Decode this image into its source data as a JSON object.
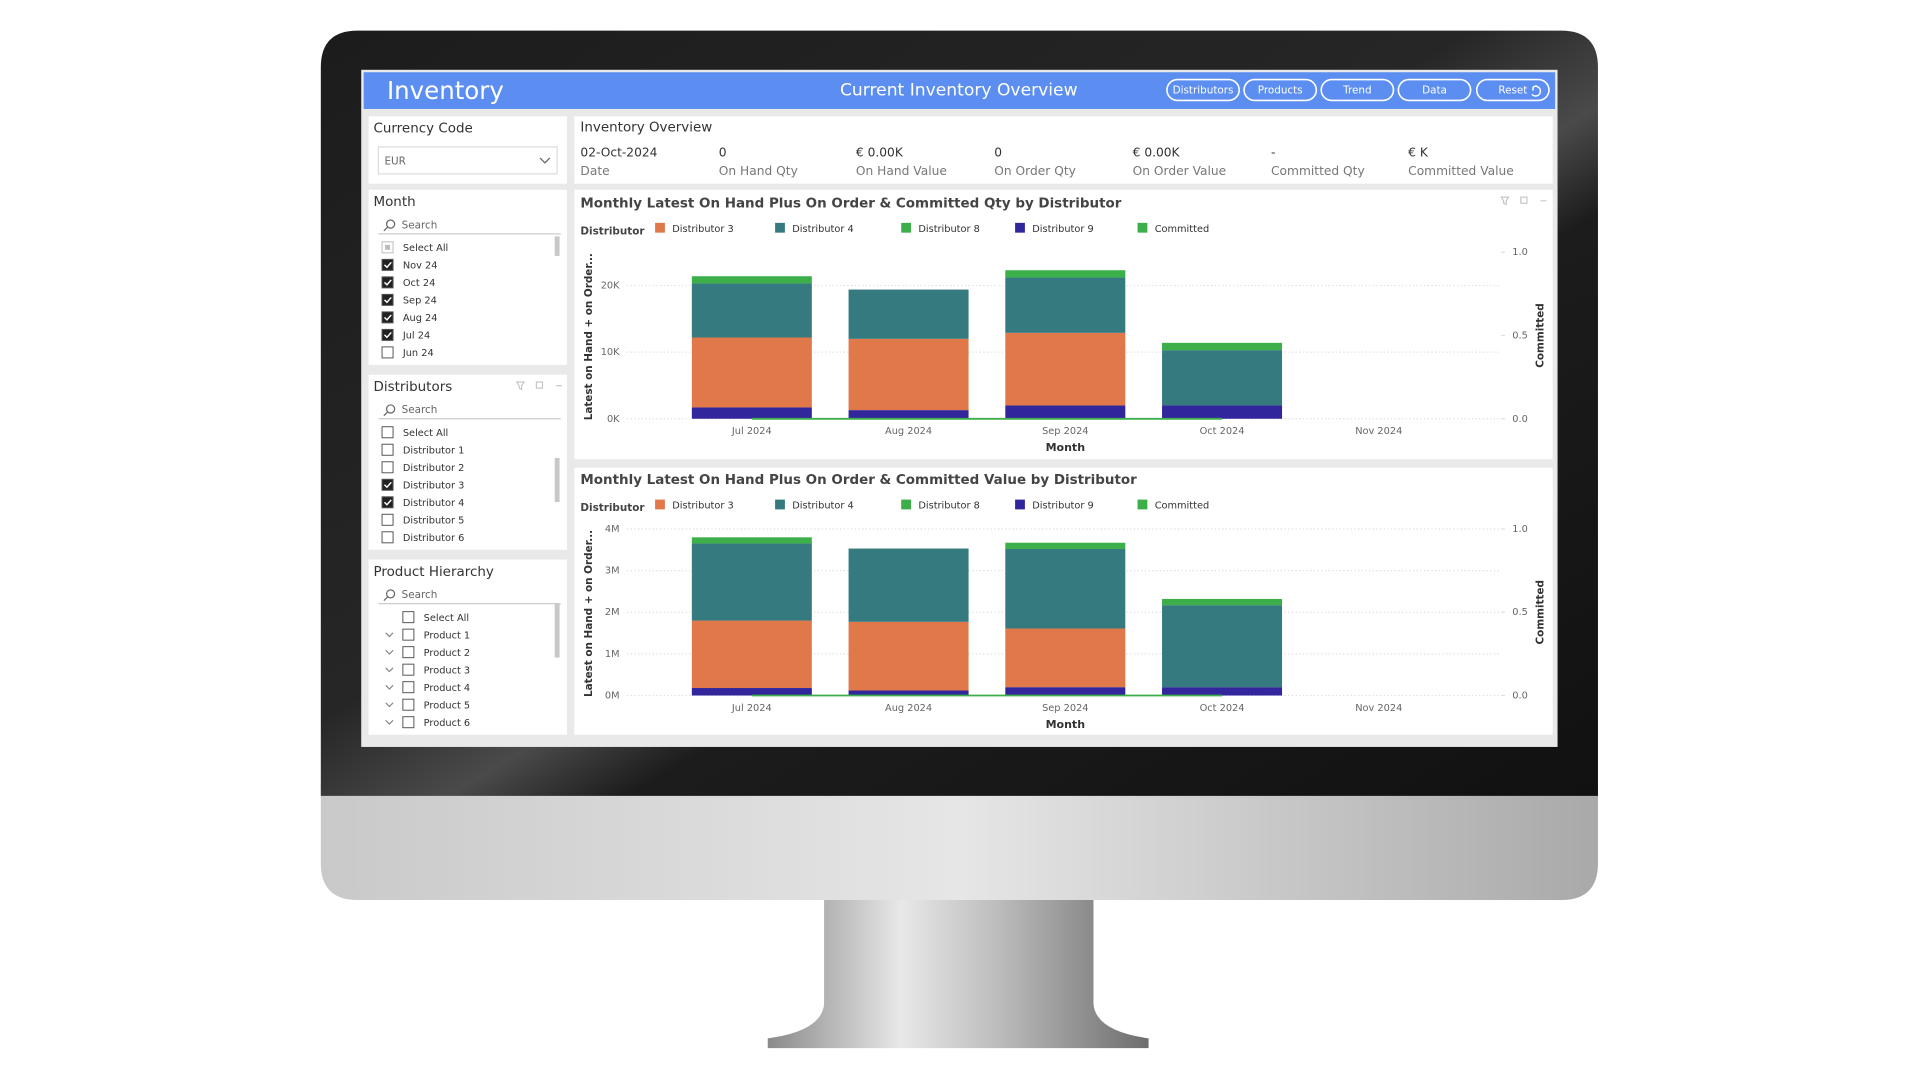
{
  "header": {
    "title": "Inventory",
    "subtitle": "Current Inventory Overview",
    "buttons": [
      "Distributors",
      "Products",
      "Trend",
      "Data",
      "Reset"
    ]
  },
  "overview": {
    "title": "Inventory Overview",
    "kpis": [
      {
        "value": "02-Oct-2024",
        "label": "Date"
      },
      {
        "value": "0",
        "label": "On Hand Qty"
      },
      {
        "value": "€ 0.00K",
        "label": "On Hand Value"
      },
      {
        "value": "0",
        "label": "On Order Qty"
      },
      {
        "value": "€ 0.00K",
        "label": "On Order Value"
      },
      {
        "value": "-",
        "label": "Committed Qty"
      },
      {
        "value": "€ K",
        "label": "Committed Value"
      }
    ]
  },
  "slicers": [
    {
      "title": "Currency Code",
      "dropdown": "EUR"
    },
    {
      "title": "Month",
      "search": "Search",
      "items": [
        {
          "label": "Select All",
          "checked": "partial"
        },
        {
          "label": "Nov 24",
          "checked": true
        },
        {
          "label": "Oct 24",
          "checked": true
        },
        {
          "label": "Sep 24",
          "checked": true
        },
        {
          "label": "Aug 24",
          "checked": true
        },
        {
          "label": "Jul 24",
          "checked": true
        },
        {
          "label": "Jun 24",
          "checked": false
        }
      ]
    },
    {
      "title": "Distributors",
      "search": "Search",
      "items": [
        {
          "label": "Select All",
          "checked": false
        },
        {
          "label": "Distributor 1",
          "checked": false
        },
        {
          "label": "Distributor 2",
          "checked": false
        },
        {
          "label": "Distributor 3",
          "checked": true
        },
        {
          "label": "Distributor 4",
          "checked": true
        },
        {
          "label": "Distributor 5",
          "checked": false
        },
        {
          "label": "Distributor 6",
          "checked": false
        }
      ]
    },
    {
      "title": "Product Hierarchy",
      "search": "Search",
      "items": [
        {
          "label": "Select All",
          "checked": false
        },
        {
          "label": "Product 1",
          "checked": false
        },
        {
          "label": "Product 2",
          "checked": false
        },
        {
          "label": "Product 3",
          "checked": false
        },
        {
          "label": "Product 4",
          "checked": false
        },
        {
          "label": "Product 5",
          "checked": false
        },
        {
          "label": "Product 6",
          "checked": false
        }
      ]
    }
  ],
  "chart_data": [
    {
      "type": "bar",
      "stacked": true,
      "title": "Monthly Latest On Hand Plus On Order & Committed Qty by Distributor",
      "legend_title": "Distributor",
      "x_label": "Month",
      "y_label": "Latest on Hand + on Order...",
      "y2_label": "Committed",
      "categories": [
        "Jul 2024",
        "Aug 2024",
        "Sep 2024",
        "Oct 2024",
        "Nov 2024"
      ],
      "series": [
        {
          "name": "Distributor 3",
          "color": "#e0784a",
          "values": [
            10500,
            10700,
            10900,
            0,
            null
          ]
        },
        {
          "name": "Distributor 4",
          "color": "#357a7f",
          "values": [
            8100,
            7400,
            8300,
            8300,
            null
          ]
        },
        {
          "name": "Distributor 8",
          "color": "#3cae4a",
          "values": [
            1100,
            0,
            1100,
            1100,
            null
          ]
        },
        {
          "name": "Distributor 9",
          "color": "#31269c",
          "values": [
            1700,
            1300,
            2000,
            2000,
            null
          ]
        },
        {
          "name": "Committed",
          "color": "#3cae4a",
          "type": "line",
          "axis": "y2",
          "values": [
            0,
            0,
            0,
            0,
            null
          ]
        }
      ],
      "ylim": [
        0,
        25000
      ],
      "yticks": [
        {
          "value": 0,
          "label": "0K"
        },
        {
          "value": 10000,
          "label": "10K"
        },
        {
          "value": 20000,
          "label": "20K"
        }
      ],
      "y2lim": [
        0,
        1
      ],
      "y2ticks": [
        {
          "value": 0,
          "label": "0.0"
        },
        {
          "value": 0.5,
          "label": "0.5"
        },
        {
          "value": 1,
          "label": "1.0"
        }
      ],
      "grid": true
    },
    {
      "type": "bar",
      "stacked": true,
      "title": "Monthly Latest On Hand Plus On Order & Committed Value by Distributor",
      "legend_title": "Distributor",
      "x_label": "Month",
      "y_label": "Latest on Hand + on Order...",
      "y2_label": "Committed",
      "categories": [
        "Jul 2024",
        "Aug 2024",
        "Sep 2024",
        "Oct 2024",
        "Nov 2024"
      ],
      "series": [
        {
          "name": "Distributor 3",
          "color": "#e0784a",
          "values": [
            1620000,
            1650000,
            1410000,
            0,
            null
          ]
        },
        {
          "name": "Distributor 4",
          "color": "#357a7f",
          "values": [
            1850000,
            1760000,
            1910000,
            1970000,
            null
          ]
        },
        {
          "name": "Distributor 8",
          "color": "#3cae4a",
          "values": [
            150000,
            0,
            150000,
            150000,
            null
          ]
        },
        {
          "name": "Distributor 9",
          "color": "#31269c",
          "values": [
            180000,
            120000,
            200000,
            200000,
            null
          ]
        },
        {
          "name": "Committed",
          "color": "#3cae4a",
          "type": "line",
          "axis": "y2",
          "values": [
            0,
            0,
            0,
            0,
            null
          ]
        }
      ],
      "ylim": [
        0,
        4000000
      ],
      "yticks": [
        {
          "value": 0,
          "label": "0M"
        },
        {
          "value": 1000000,
          "label": "1M"
        },
        {
          "value": 2000000,
          "label": "2M"
        },
        {
          "value": 3000000,
          "label": "3M"
        },
        {
          "value": 4000000,
          "label": "4M"
        }
      ],
      "y2lim": [
        0,
        1
      ],
      "y2ticks": [
        {
          "value": 0,
          "label": "0.0"
        },
        {
          "value": 0.5,
          "label": "0.5"
        },
        {
          "value": 1,
          "label": "1.0"
        }
      ],
      "grid": true
    }
  ]
}
